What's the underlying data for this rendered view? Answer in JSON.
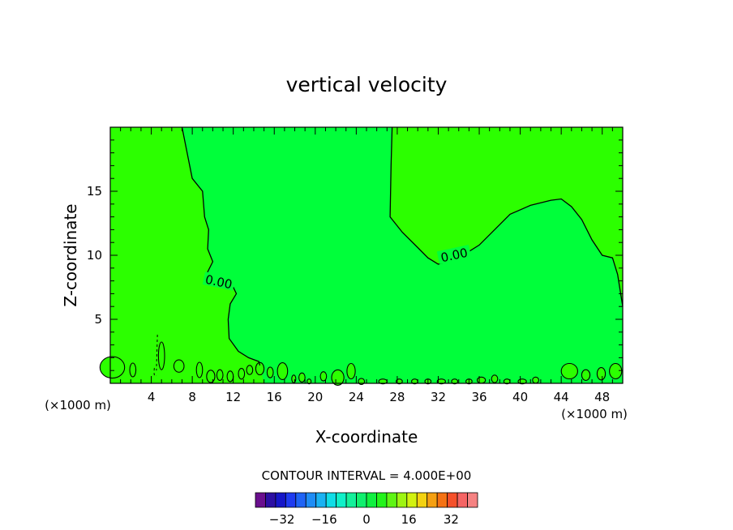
{
  "chart_data": {
    "type": "contour",
    "title": "vertical velocity",
    "xlabel": "X-coordinate",
    "ylabel": "Z-coordinate",
    "x_unit_label": "(×1000 m)",
    "x_unit_label_right": "(×1000 m)",
    "xlim": [
      0,
      50
    ],
    "ylim": [
      0,
      20
    ],
    "x_ticks": [
      4,
      8,
      12,
      16,
      20,
      24,
      28,
      32,
      36,
      40,
      44,
      48
    ],
    "y_ticks": [
      5,
      10,
      15
    ],
    "contour_label": "0.00",
    "contour_interval_text": "CONTOUR INTERVAL = 4.000E+00",
    "colorbar": {
      "min": -40,
      "max": 40,
      "step": 4,
      "labels": [
        -32,
        -16,
        0,
        16,
        32
      ],
      "colors": [
        "#6a0f8e",
        "#2c0fa3",
        "#1616c8",
        "#1f3bf0",
        "#1f63f5",
        "#1e8cf5",
        "#1ab2f2",
        "#10dde6",
        "#10f0c8",
        "#14f09a",
        "#10f06e",
        "#10f040",
        "#23f41b",
        "#5ff514",
        "#9ef512",
        "#d2f210",
        "#f4d210",
        "#f5a012",
        "#f57214",
        "#f5502a",
        "#f56464",
        "#f58282"
      ]
    },
    "regions": {
      "positive_color": "#2cff00",
      "near_zero_color": "#00ff3a"
    },
    "zero_contour_upper_right": [
      [
        27.5,
        20
      ],
      [
        27.4,
        17
      ],
      [
        27.3,
        13.0
      ],
      [
        28.5,
        11.8
      ],
      [
        30,
        10.6
      ],
      [
        31,
        9.8
      ],
      [
        32,
        9.3
      ],
      [
        34,
        9.8
      ],
      [
        36,
        10.8
      ],
      [
        37.5,
        12.0
      ],
      [
        39,
        13.2
      ],
      [
        41,
        13.9
      ],
      [
        43,
        14.3
      ],
      [
        44,
        14.4
      ],
      [
        45,
        13.8
      ],
      [
        46,
        12.8
      ],
      [
        47,
        11.2
      ],
      [
        48,
        10.0
      ],
      [
        49,
        9.8
      ],
      [
        49.5,
        8.5
      ],
      [
        50,
        6.0
      ]
    ],
    "zero_contour_left": [
      [
        7,
        20
      ],
      [
        8,
        16
      ],
      [
        9,
        15
      ],
      [
        9.2,
        13
      ],
      [
        9.6,
        12
      ],
      [
        9.5,
        10.5
      ],
      [
        10,
        9.5
      ],
      [
        9.5,
        8.7
      ],
      [
        10,
        7.9
      ],
      [
        11,
        7.6
      ],
      [
        12,
        7.5
      ],
      [
        12.3,
        7.0
      ],
      [
        11.7,
        6.2
      ],
      [
        11.5,
        5.0
      ],
      [
        11.6,
        3.5
      ],
      [
        12.5,
        2.5
      ],
      [
        13.5,
        2.0
      ],
      [
        14.5,
        1.7
      ],
      [
        14.6,
        1.4
      ]
    ]
  }
}
